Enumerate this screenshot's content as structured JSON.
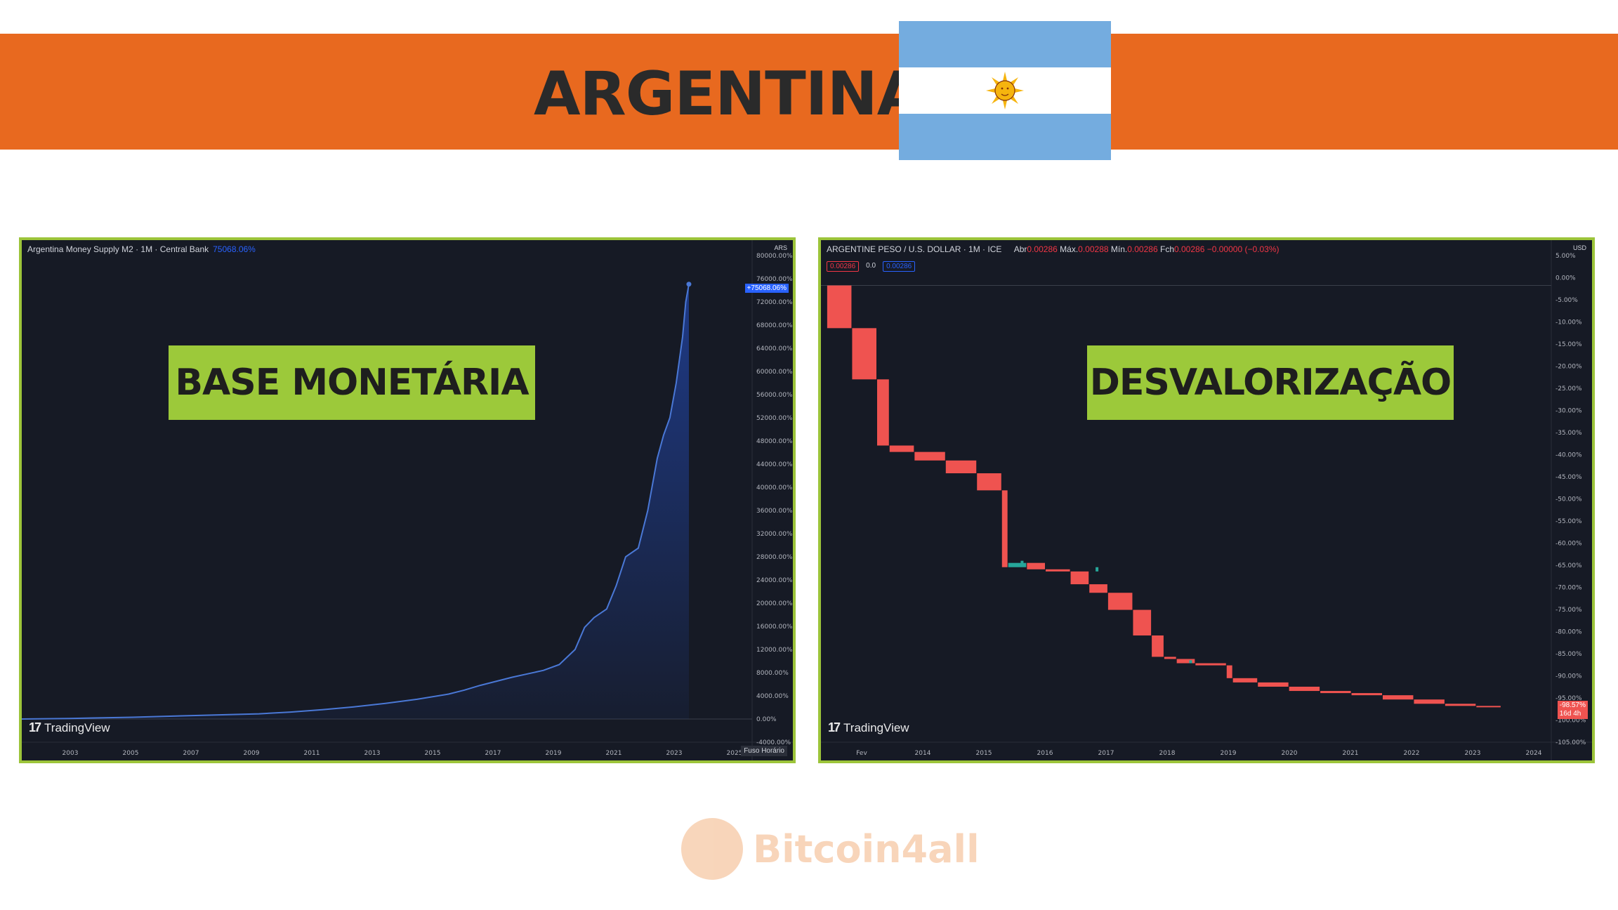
{
  "banner": {
    "title": "ARGENTINA"
  },
  "colors": {
    "banner": "#e8691f",
    "label_bg": "#9cc93a",
    "panel_border": "#9cc43a",
    "panel_bg": "#161a25",
    "flag_blue": "#74acdf",
    "up": "#26a69a",
    "down": "#ef5350",
    "m2_line": "#4a78d6"
  },
  "watermark": {
    "text": "Bitcoin4all"
  },
  "left_panel": {
    "header": "Argentina Money Supply M2 · 1M · Central Bank",
    "header_value": "75068.06%",
    "label": "BASE MONETÁRIA",
    "logo": "TradingView",
    "currency": "ARS",
    "fuso": "Fuso Horário",
    "last_tag": "+75068.06%"
  },
  "right_panel": {
    "header": "ARGENTINE PESO / U.S. DOLLAR · 1M · ICE",
    "ohlc": {
      "abr_label": "Abr",
      "abr": "0.00286",
      "max_label": "Máx.",
      "max": "0.00288",
      "min_label": "Mín.",
      "min": "0.00286",
      "fch_label": "Fch",
      "fch": "0.00286",
      "chg": "−0.00000 (−0.03%)"
    },
    "mini": [
      "0.00286",
      "0.0",
      "0.00286"
    ],
    "label": "DESVALORIZAÇÃO",
    "logo": "TradingView",
    "currency": "USD",
    "last_tag": "-98.57%",
    "last_tag_sub": "16d 4h"
  },
  "chart_data": [
    {
      "type": "area",
      "title": "Argentina Money Supply M2 · 1M · Central Bank",
      "xlabel": "",
      "ylabel": "",
      "x_ticks": [
        "2003",
        "2005",
        "2007",
        "2009",
        "2011",
        "2013",
        "2015",
        "2017",
        "2019",
        "2021",
        "2023",
        "2025"
      ],
      "y_ticks": [
        "80000.00%",
        "76000.00%",
        "72000.00%",
        "68000.00%",
        "64000.00%",
        "60000.00%",
        "56000.00%",
        "52000.00%",
        "48000.00%",
        "44000.00%",
        "40000.00%",
        "36000.00%",
        "32000.00%",
        "28000.00%",
        "24000.00%",
        "20000.00%",
        "16000.00%",
        "12000.00%",
        "8000.00%",
        "4000.00%",
        "0.00%",
        "-4000.00%"
      ],
      "xlim": [
        2002.5,
        2025.6
      ],
      "ylim": [
        -4000,
        80000
      ],
      "series": [
        {
          "x": [
            2002.5,
            2004,
            2006,
            2008,
            2010,
            2011,
            2012,
            2013,
            2014,
            2015,
            2016,
            2016.5,
            2017,
            2017.5,
            2018,
            2018.5,
            2019,
            2019.5,
            2020,
            2020.3,
            2020.6,
            2021,
            2021.3,
            2021.6,
            2022,
            2022.3,
            2022.6,
            2022.8,
            2023,
            2023.2,
            2023.4,
            2023.5,
            2023.6
          ],
          "y": [
            0,
            100,
            300,
            600,
            900,
            1200,
            1600,
            2100,
            2700,
            3400,
            4300,
            5000,
            5800,
            6500,
            7200,
            7800,
            8400,
            9400,
            12000,
            15800,
            17500,
            19000,
            23000,
            28000,
            29500,
            36000,
            45000,
            49000,
            52000,
            58000,
            66000,
            72000,
            75068
          ]
        }
      ]
    },
    {
      "type": "candlestick",
      "title": "ARGENTINE PESO / U.S. DOLLAR · 1M · ICE",
      "xlabel": "",
      "ylabel": "",
      "x_ticks": [
        "Fev",
        "2014",
        "2015",
        "2016",
        "2017",
        "2018",
        "2019",
        "2020",
        "2021",
        "2022",
        "2023",
        "2024"
      ],
      "y_ticks": [
        "5.00%",
        "0.00%",
        "-5.00%",
        "-10.00%",
        "-15.00%",
        "-20.00%",
        "-25.00%",
        "-30.00%",
        "-35.00%",
        "-40.00%",
        "-45.00%",
        "-50.00%",
        "-55.00%",
        "-60.00%",
        "-65.00%",
        "-70.00%",
        "-75.00%",
        "-80.00%",
        "-85.00%",
        "-90.00%",
        "-95.00%",
        "-100.00%",
        "-105.00%"
      ],
      "xlim": [
        2013.0,
        2024.7
      ],
      "ylim": [
        -107,
        7
      ],
      "series": [
        {
          "x": [
            2013.1,
            2013.5,
            2013.9,
            2014.1,
            2014.5,
            2015.0,
            2015.5,
            2015.9,
            2016.0,
            2016.3,
            2016.6,
            2017.0,
            2017.3,
            2017.6,
            2018.0,
            2018.3,
            2018.5,
            2018.7,
            2019.0,
            2019.5,
            2019.6,
            2020.0,
            2020.5,
            2021.0,
            2021.5,
            2022.0,
            2022.5,
            2023.0,
            2023.5,
            2023.9
          ],
          "y": [
            0,
            -10,
            -22,
            -37.5,
            -39,
            -41,
            -44,
            -48,
            -66,
            -65,
            -66.5,
            -67,
            -70,
            -72,
            -76,
            -82,
            -87,
            -87.5,
            -88.5,
            -89,
            -92,
            -93,
            -94,
            -95,
            -95.5,
            -96,
            -97,
            -98,
            -98.5,
            -98.57
          ]
        }
      ]
    }
  ]
}
